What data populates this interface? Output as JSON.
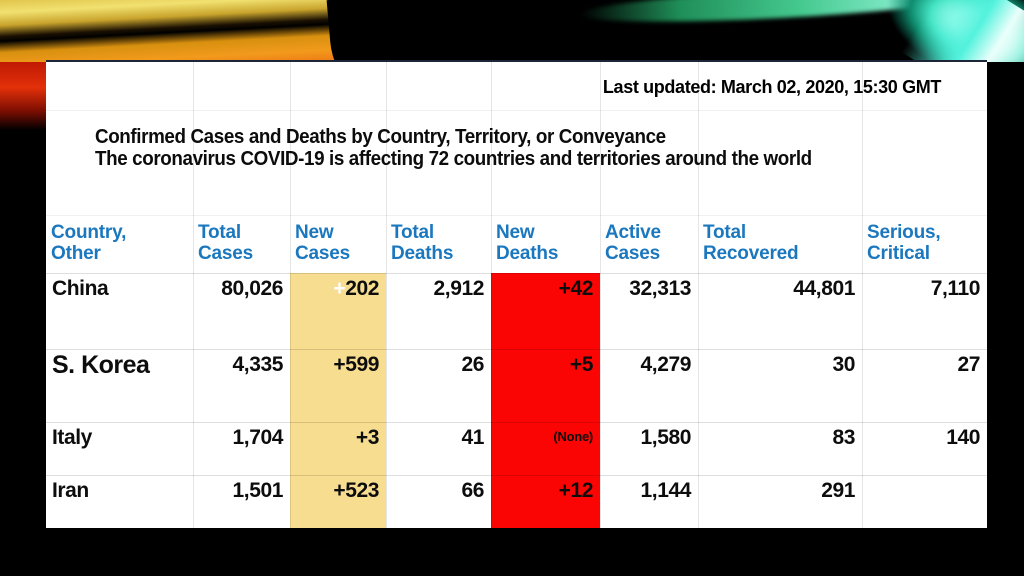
{
  "slide": {
    "last_updated": "Last updated: March 02, 2020, 15:30 GMT",
    "title_lines": [
      "Confirmed Cases and Deaths by Country, Territory, or Conveyance",
      "The coronavirus COVID-19 is affecting 72 countries and territories around the world"
    ]
  },
  "colors": {
    "header_blue": "#1b78be",
    "highlight_yellow": "#f7dd90",
    "highlight_red": "#fb0404",
    "panel_bg": "#ffffff",
    "slide_bg": "#000000"
  },
  "table": {
    "columns": [
      {
        "key": "country",
        "label_lines": [
          "Country,",
          "Other"
        ]
      },
      {
        "key": "total_cases",
        "label_lines": [
          "Total",
          "Cases"
        ]
      },
      {
        "key": "new_cases",
        "label_lines": [
          "New",
          "Cases"
        ]
      },
      {
        "key": "total_deaths",
        "label_lines": [
          "Total",
          "Deaths"
        ]
      },
      {
        "key": "new_deaths",
        "label_lines": [
          "New",
          "Deaths"
        ]
      },
      {
        "key": "active_cases",
        "label_lines": [
          "Active",
          "Cases"
        ]
      },
      {
        "key": "total_recovered",
        "label_lines": [
          "Total",
          "Recovered"
        ]
      },
      {
        "key": "serious_critical",
        "label_lines": [
          "Serious,",
          "Critical"
        ]
      }
    ],
    "rows": [
      {
        "country": "China",
        "big": false,
        "cells": [
          {
            "text": "80,026"
          },
          {
            "text": "+202",
            "plus_white": true
          },
          {
            "text": "2,912"
          },
          {
            "text": "+42"
          },
          {
            "text": "32,313"
          },
          {
            "text": "44,801"
          },
          {
            "text": "7,110"
          }
        ]
      },
      {
        "country": "S. Korea",
        "big": true,
        "cells": [
          {
            "text": "4,335"
          },
          {
            "text": "+599"
          },
          {
            "text": "26"
          },
          {
            "text": "+5"
          },
          {
            "text": "4,279"
          },
          {
            "text": "30"
          },
          {
            "text": "27"
          }
        ]
      },
      {
        "country": "Italy",
        "big": false,
        "cells": [
          {
            "text": "1,704"
          },
          {
            "text": "+3"
          },
          {
            "text": "41"
          },
          {
            "text": "(None)",
            "small": true
          },
          {
            "text": "1,580"
          },
          {
            "text": "83"
          },
          {
            "text": "140"
          }
        ]
      },
      {
        "country": "Iran",
        "big": false,
        "cells": [
          {
            "text": "1,501"
          },
          {
            "text": "+523"
          },
          {
            "text": "66"
          },
          {
            "text": "+12"
          },
          {
            "text": "1,144"
          },
          {
            "text": "291"
          },
          {
            "text": ""
          }
        ]
      }
    ]
  }
}
